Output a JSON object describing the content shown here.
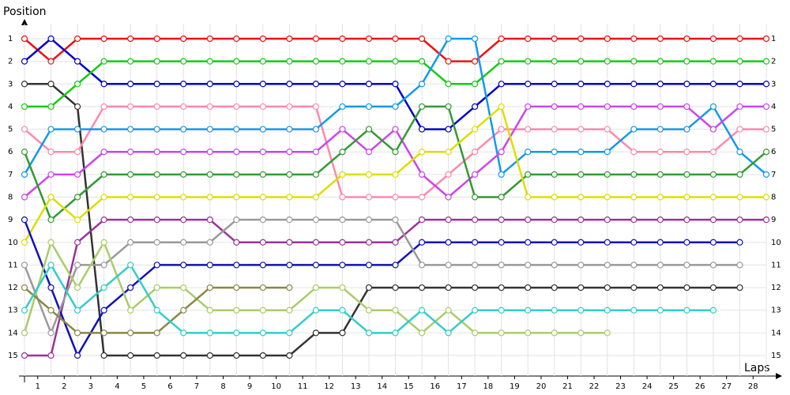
{
  "chart_data": {
    "type": "line",
    "y_label": "Position",
    "x_label": "Laps",
    "x": [
      0,
      1,
      2,
      3,
      4,
      5,
      6,
      7,
      8,
      9,
      10,
      11,
      12,
      13,
      14,
      15,
      16,
      17,
      18,
      19,
      20,
      21,
      22,
      23,
      24,
      25,
      26,
      27,
      28
    ],
    "xlim": [
      0,
      28
    ],
    "xticks": [
      {
        "value": 0.5,
        "label": "1"
      },
      {
        "value": 1.5,
        "label": "2"
      },
      {
        "value": 2.5,
        "label": "3"
      },
      {
        "value": 3.5,
        "label": "4"
      },
      {
        "value": 4.5,
        "label": "5"
      },
      {
        "value": 5.5,
        "label": "6"
      },
      {
        "value": 6.5,
        "label": "7"
      },
      {
        "value": 7.5,
        "label": "8"
      },
      {
        "value": 8.5,
        "label": "9"
      },
      {
        "value": 9.5,
        "label": "10"
      },
      {
        "value": 10.5,
        "label": "11"
      },
      {
        "value": 11.5,
        "label": "12"
      },
      {
        "value": 12.5,
        "label": "13"
      },
      {
        "value": 13.5,
        "label": "14"
      },
      {
        "value": 14.5,
        "label": "15"
      },
      {
        "value": 15.5,
        "label": "16"
      },
      {
        "value": 16.5,
        "label": "17"
      },
      {
        "value": 17.5,
        "label": "18"
      },
      {
        "value": 18.5,
        "label": "19"
      },
      {
        "value": 19.5,
        "label": "20"
      },
      {
        "value": 20.5,
        "label": "21"
      },
      {
        "value": 21.5,
        "label": "22"
      },
      {
        "value": 22.5,
        "label": "23"
      },
      {
        "value": 23.5,
        "label": "24"
      },
      {
        "value": 24.5,
        "label": "25"
      },
      {
        "value": 25.5,
        "label": "26"
      },
      {
        "value": 26.5,
        "label": "27"
      },
      {
        "value": 27.5,
        "label": "28"
      }
    ],
    "ylim": [
      1,
      15
    ],
    "y_inverted": true,
    "yticks": [
      1,
      2,
      3,
      4,
      5,
      6,
      7,
      8,
      9,
      10,
      11,
      12,
      13,
      14,
      15
    ],
    "grid": true,
    "series": [
      {
        "color": "#ee1111",
        "values": [
          1,
          2,
          1,
          1,
          1,
          1,
          1,
          1,
          1,
          1,
          1,
          1,
          1,
          1,
          1,
          1,
          2,
          2,
          1,
          1,
          1,
          1,
          1,
          1,
          1,
          1,
          1,
          1,
          1
        ]
      },
      {
        "color": "#0000cc",
        "values": [
          2,
          1,
          2,
          3,
          3,
          3,
          3,
          3,
          3,
          3,
          3,
          3,
          3,
          3,
          3,
          5,
          5,
          4,
          3,
          3,
          3,
          3,
          3,
          3,
          3,
          3,
          3,
          3,
          3
        ]
      },
      {
        "color": "#333333",
        "values": [
          3,
          3,
          4,
          15,
          15,
          15,
          15,
          15,
          15,
          15,
          15,
          14,
          14,
          12,
          12,
          12,
          12,
          12,
          12,
          12,
          12,
          12,
          12,
          12,
          12,
          12,
          12,
          12,
          null
        ]
      },
      {
        "color": "#11cc11",
        "values": [
          4,
          4,
          3,
          2,
          2,
          2,
          2,
          2,
          2,
          2,
          2,
          2,
          2,
          2,
          2,
          2,
          3,
          3,
          2,
          2,
          2,
          2,
          2,
          2,
          2,
          2,
          2,
          2,
          2
        ]
      },
      {
        "color": "#ff88aa",
        "values": [
          5,
          6,
          6,
          4,
          4,
          4,
          4,
          4,
          4,
          4,
          4,
          4,
          8,
          8,
          8,
          8,
          7,
          6,
          5,
          5,
          5,
          5,
          5,
          6,
          6,
          6,
          6,
          5,
          5
        ]
      },
      {
        "color": "#1199ee",
        "values": [
          7,
          5,
          5,
          5,
          5,
          5,
          5,
          5,
          5,
          5,
          5,
          5,
          4,
          4,
          4,
          3,
          1,
          1,
          7,
          6,
          6,
          6,
          6,
          5,
          5,
          5,
          4,
          6,
          7
        ]
      },
      {
        "color": "#cc44ee",
        "values": [
          8,
          7,
          7,
          6,
          6,
          6,
          6,
          6,
          6,
          6,
          6,
          6,
          5,
          6,
          5,
          7,
          8,
          7,
          6,
          4,
          4,
          4,
          4,
          4,
          4,
          4,
          5,
          4,
          4
        ]
      },
      {
        "color": "#339933",
        "values": [
          6,
          9,
          8,
          7,
          7,
          7,
          7,
          7,
          7,
          7,
          7,
          7,
          6,
          5,
          6,
          4,
          4,
          8,
          8,
          7,
          7,
          7,
          7,
          7,
          7,
          7,
          7,
          7,
          6
        ]
      },
      {
        "color": "#dddd00",
        "values": [
          10,
          8,
          9,
          8,
          8,
          8,
          8,
          8,
          8,
          8,
          8,
          8,
          7,
          7,
          7,
          6,
          6,
          5,
          4,
          8,
          8,
          8,
          8,
          8,
          8,
          8,
          8,
          8,
          8
        ]
      },
      {
        "color": "#993399",
        "values": [
          15,
          15,
          10,
          9,
          9,
          9,
          9,
          9,
          10,
          10,
          10,
          10,
          10,
          10,
          10,
          9,
          9,
          9,
          9,
          9,
          9,
          9,
          9,
          9,
          9,
          9,
          9,
          9,
          9
        ]
      },
      {
        "color": "#1111bb",
        "values": [
          9,
          12,
          15,
          13,
          12,
          11,
          11,
          11,
          11,
          11,
          11,
          11,
          11,
          11,
          11,
          10,
          10,
          10,
          10,
          10,
          10,
          10,
          10,
          10,
          10,
          10,
          10,
          10,
          null
        ]
      },
      {
        "color": "#999999",
        "values": [
          11,
          14,
          11,
          11,
          10,
          10,
          10,
          10,
          9,
          9,
          9,
          9,
          9,
          9,
          9,
          11,
          11,
          11,
          11,
          11,
          11,
          11,
          11,
          11,
          11,
          11,
          11,
          11,
          null
        ]
      },
      {
        "color": "#aacc66",
        "values": [
          14,
          10,
          12,
          10,
          13,
          12,
          12,
          13,
          13,
          13,
          13,
          12,
          12,
          13,
          13,
          14,
          13,
          14,
          14,
          14,
          14,
          14,
          14,
          null,
          null,
          null,
          null,
          null,
          null
        ]
      },
      {
        "color": "#888844",
        "values": [
          12,
          13,
          14,
          14,
          14,
          14,
          13,
          12,
          12,
          12,
          12,
          null,
          null,
          null,
          null,
          null,
          null,
          null,
          null,
          null,
          null,
          null,
          null,
          null,
          null,
          null,
          null,
          null,
          null
        ]
      },
      {
        "color": "#33cccc",
        "values": [
          13,
          11,
          13,
          12,
          11,
          13,
          14,
          14,
          14,
          14,
          14,
          13,
          13,
          14,
          14,
          13,
          14,
          13,
          13,
          13,
          13,
          13,
          13,
          13,
          13,
          13,
          13,
          null,
          null
        ]
      }
    ]
  }
}
